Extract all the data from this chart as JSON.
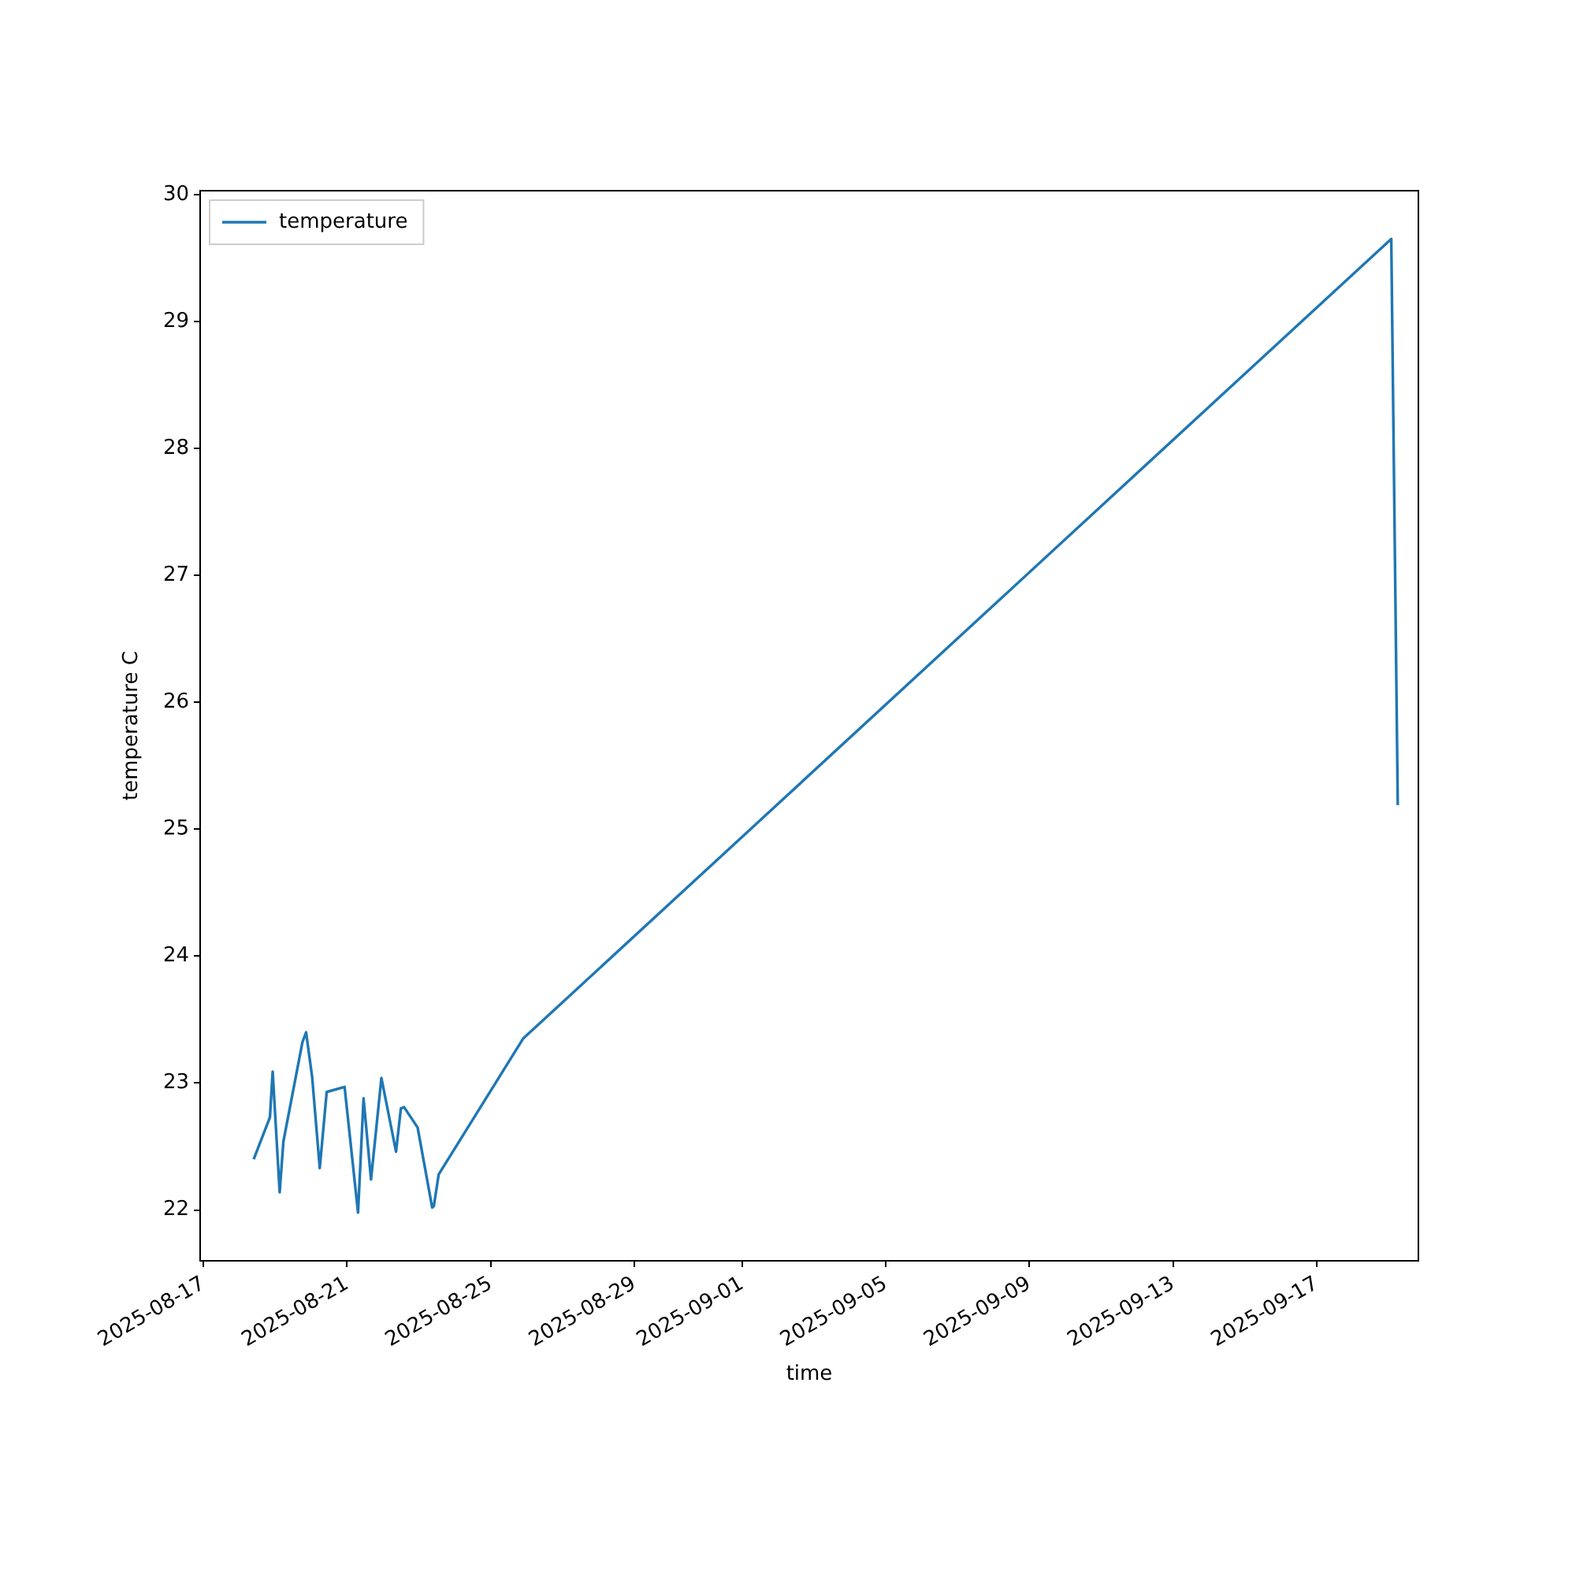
{
  "chart_data": {
    "type": "line",
    "xlabel": "time",
    "ylabel": "temperature C",
    "xlim": [
      "2025-08-16T21:50",
      "2025-09-19T20:00"
    ],
    "ylim": [
      21.6,
      30.03
    ],
    "xticks": [
      "2025-08-17",
      "2025-08-21",
      "2025-08-25",
      "2025-08-29",
      "2025-09-01",
      "2025-09-05",
      "2025-09-09",
      "2025-09-13",
      "2025-09-17"
    ],
    "yticks": [
      22,
      23,
      24,
      25,
      26,
      27,
      28,
      29,
      30
    ],
    "grid": false,
    "legend": "top left",
    "series": [
      {
        "name": "temperature",
        "color": "#1f77b4",
        "x": [
          "2025-08-18T09:37",
          "2025-08-18T20:28",
          "2025-08-18T22:18",
          "2025-08-19T02:58",
          "2025-08-19T05:28",
          "2025-08-19T18:09",
          "2025-08-19T20:38",
          "2025-08-20T00:40",
          "2025-08-20T05:46",
          "2025-08-20T10:25",
          "2025-08-20T22:21",
          "2025-08-21T07:21",
          "2025-08-21T11:02",
          "2025-08-21T16:02",
          "2025-08-21T22:58",
          "2025-08-22T08:44",
          "2025-08-22T11:59",
          "2025-08-22T14:10",
          "2025-08-22T23:10",
          "2025-08-23T08:54",
          "2025-08-23T10:00",
          "2025-08-23T13:15",
          "2025-08-25T21:39",
          "2025-09-19T01:52",
          "2025-09-19T06:13"
        ],
        "values": [
          22.4,
          22.73,
          23.09,
          22.14,
          22.54,
          23.32,
          23.4,
          23.05,
          22.33,
          22.93,
          22.97,
          21.98,
          22.88,
          22.24,
          23.04,
          22.46,
          22.8,
          22.81,
          22.65,
          22.02,
          22.03,
          22.28,
          23.35,
          29.65,
          25.19
        ]
      }
    ]
  }
}
